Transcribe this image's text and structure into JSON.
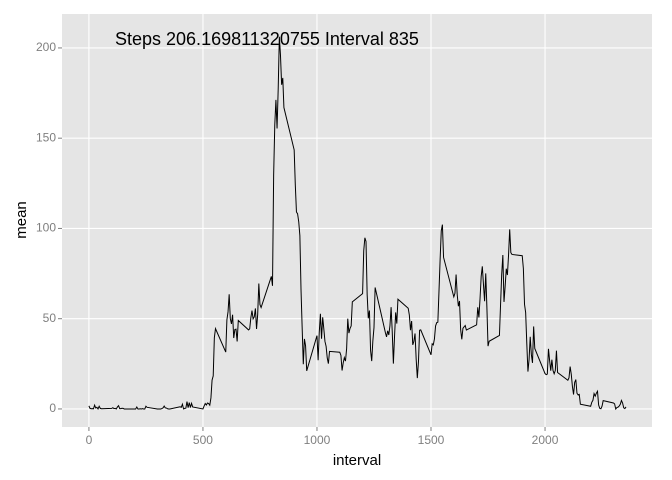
{
  "chart_data": {
    "type": "line",
    "annotation": "Steps 206.169811320755 Interval 835",
    "xlabel": "interval",
    "ylabel": "mean",
    "color": "#000000",
    "grid": true,
    "xlim": [
      -118,
      2469
    ],
    "ylim": [
      -10,
      218.8
    ],
    "xticks": [
      0,
      500,
      1000,
      1500,
      2000
    ],
    "yticks": [
      0,
      50,
      100,
      150,
      200
    ],
    "x": [
      0,
      5,
      10,
      15,
      20,
      25,
      30,
      35,
      40,
      45,
      50,
      55,
      100,
      105,
      110,
      115,
      120,
      125,
      130,
      135,
      140,
      145,
      150,
      155,
      200,
      205,
      210,
      215,
      220,
      225,
      230,
      235,
      240,
      245,
      250,
      255,
      300,
      305,
      310,
      315,
      320,
      325,
      330,
      335,
      340,
      345,
      350,
      355,
      400,
      405,
      410,
      415,
      420,
      425,
      430,
      435,
      440,
      445,
      450,
      455,
      500,
      505,
      510,
      515,
      520,
      525,
      530,
      535,
      540,
      545,
      550,
      555,
      600,
      605,
      610,
      615,
      620,
      625,
      630,
      635,
      640,
      645,
      650,
      655,
      700,
      705,
      710,
      715,
      720,
      725,
      730,
      735,
      740,
      745,
      750,
      755,
      800,
      805,
      810,
      815,
      820,
      825,
      830,
      835,
      840,
      845,
      850,
      855,
      900,
      905,
      910,
      915,
      920,
      925,
      930,
      935,
      940,
      945,
      950,
      955,
      1000,
      1005,
      1010,
      1015,
      1020,
      1025,
      1030,
      1035,
      1040,
      1045,
      1050,
      1055,
      1100,
      1105,
      1110,
      1115,
      1120,
      1125,
      1130,
      1135,
      1140,
      1145,
      1150,
      1155,
      1200,
      1205,
      1210,
      1215,
      1220,
      1225,
      1230,
      1235,
      1240,
      1245,
      1250,
      1255,
      1300,
      1305,
      1310,
      1315,
      1320,
      1325,
      1330,
      1335,
      1340,
      1345,
      1350,
      1355,
      1400,
      1405,
      1410,
      1415,
      1420,
      1425,
      1430,
      1435,
      1440,
      1445,
      1450,
      1455,
      1500,
      1505,
      1510,
      1515,
      1520,
      1525,
      1530,
      1535,
      1540,
      1545,
      1550,
      1555,
      1600,
      1605,
      1610,
      1615,
      1620,
      1625,
      1630,
      1635,
      1640,
      1645,
      1650,
      1655,
      1700,
      1705,
      1710,
      1715,
      1720,
      1725,
      1730,
      1735,
      1740,
      1745,
      1750,
      1755,
      1800,
      1805,
      1810,
      1815,
      1820,
      1825,
      1830,
      1835,
      1840,
      1845,
      1850,
      1855,
      1900,
      1905,
      1910,
      1915,
      1920,
      1925,
      1930,
      1935,
      1940,
      1945,
      1950,
      1955,
      2000,
      2005,
      2010,
      2015,
      2020,
      2025,
      2030,
      2035,
      2040,
      2045,
      2050,
      2055,
      2100,
      2105,
      2110,
      2115,
      2120,
      2125,
      2130,
      2135,
      2140,
      2145,
      2150,
      2155,
      2200,
      2205,
      2210,
      2215,
      2220,
      2225,
      2230,
      2235,
      2240,
      2245,
      2250,
      2255,
      2300,
      2305,
      2310,
      2315,
      2320,
      2325,
      2330,
      2335,
      2340,
      2345,
      2350,
      2355
    ],
    "values": [
      1.7,
      0.3,
      0.1,
      0.2,
      0.1,
      2.1,
      0.5,
      0.9,
      0,
      1.5,
      0.3,
      0.1,
      0.3,
      0.7,
      0.2,
      0.3,
      0,
      1.1,
      1.8,
      0.2,
      0.2,
      0.4,
      0.3,
      0,
      0,
      0,
      1.1,
      0,
      0,
      0.1,
      0,
      0.2,
      0,
      0,
      1.5,
      0.9,
      0,
      0,
      0,
      0,
      0.2,
      0.6,
      1.6,
      0.6,
      0.5,
      0.1,
      0,
      0,
      1.2,
      0.9,
      2.6,
      0,
      0.3,
      0.4,
      4.1,
      0.7,
      3.5,
      0.8,
      3.1,
      1.1,
      0,
      1.6,
      3,
      2.2,
      3.3,
      3,
      2.1,
      6.1,
      16,
      18.3,
      39.5,
      44.5,
      31.5,
      49.3,
      53.8,
      63.5,
      50,
      47.1,
      52.2,
      39.3,
      44,
      44.2,
      37.4,
      49,
      43.8,
      44.4,
      50.5,
      54.5,
      49.9,
      51,
      55.7,
      44.3,
      52.3,
      69.5,
      57.8,
      56.2,
      73.4,
      68.2,
      129.4,
      157.5,
      171.2,
      155.4,
      177.3,
      206.2,
      195.9,
      179.6,
      183.4,
      167,
      143.5,
      124,
      109.1,
      108.1,
      103.7,
      96,
      66.2,
      45.2,
      24.8,
      38.8,
      35,
      21.1,
      40.6,
      27,
      42.4,
      52.7,
      38.9,
      50.8,
      44.3,
      37.4,
      34.7,
      28.3,
      25.1,
      31.9,
      31.4,
      29.7,
      21.3,
      25.5,
      28.4,
      26.5,
      33.4,
      50,
      42,
      44.6,
      46,
      59.3,
      63.9,
      87.7,
      94.8,
      92.8,
      63.4,
      50.2,
      54.5,
      32.4,
      26.5,
      37.7,
      45.1,
      67.3,
      42.3,
      39.9,
      43.3,
      41,
      46.2,
      56.4,
      42.8,
      25.1,
      40,
      53.5,
      47.3,
      60.8,
      55.8,
      52,
      43.6,
      48.7,
      35.5,
      37.5,
      41.8,
      27.5,
      17.1,
      26.1,
      43.6,
      43.8,
      30,
      36.1,
      35.5,
      38.8,
      46,
      47.8,
      48.1,
      65.3,
      82.9,
      98.7,
      102.1,
      84,
      62.1,
      64.1,
      74.5,
      63.2,
      56.9,
      59.8,
      43.9,
      38.6,
      44.7,
      45.5,
      46.2,
      43.7,
      46.6,
      56.3,
      50.7,
      61.2,
      73.4,
      79,
      68.9,
      59.7,
      75.1,
      56.5,
      34.8,
      37.5,
      40.7,
      58,
      74.7,
      85.3,
      59.3,
      67.8,
      77.7,
      74.2,
      85.3,
      99.5,
      86.6,
      85.6,
      84.9,
      77.8,
      58,
      53.4,
      36.3,
      20.7,
      27.4,
      40,
      30.2,
      25.5,
      45.7,
      33.5,
      19.6,
      19,
      19.3,
      33.3,
      26.8,
      21.2,
      27.3,
      21.3,
      19.5,
      21.3,
      32.3,
      20.2,
      15.9,
      17.2,
      23.5,
      19.2,
      12.5,
      8,
      14.7,
      16.3,
      8.7,
      7.8,
      8.1,
      2.6,
      1.5,
      3.7,
      4.8,
      8.5,
      7.1,
      8.7,
      9.8,
      2.2,
      0.3,
      0.1,
      1.6,
      4.6,
      3.3,
      2.8,
      0,
      0.8,
      1,
      1.6,
      2.6,
      4.7,
      3.3,
      0.6,
      0.2,
      1.1
    ]
  }
}
